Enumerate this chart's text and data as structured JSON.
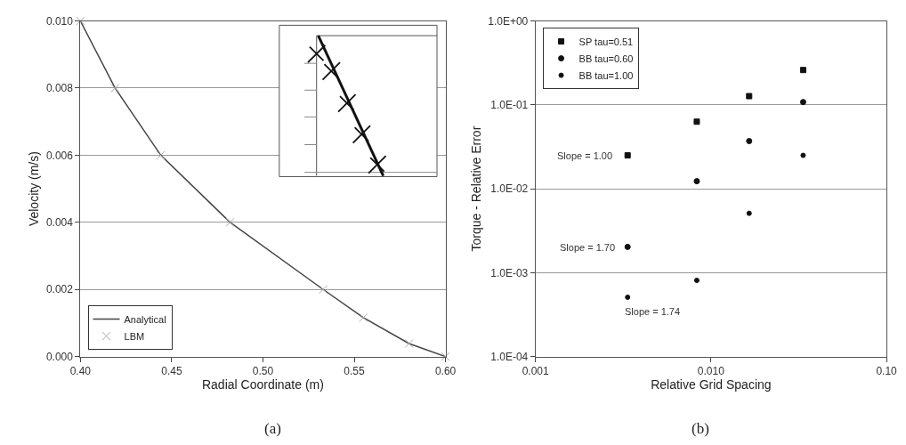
{
  "chart_data": [
    {
      "type": "line",
      "xlabel": "Radial Coordinate (m)",
      "ylabel": "Velocity (m/s)",
      "x": [
        0.4,
        0.419,
        0.444,
        0.482,
        0.533,
        0.555,
        0.58,
        0.6
      ],
      "series": [
        {
          "name": "Analytical",
          "color": "#444444",
          "values": [
            0.01,
            0.008,
            0.006,
            0.004,
            0.002,
            0.00116,
            0.00039,
            0.0
          ],
          "line_style": "solid",
          "marker": "none"
        },
        {
          "name": "LBM",
          "type": "scatter",
          "color": "#aaaaaa",
          "values": [
            0.01,
            0.008,
            0.006,
            0.004,
            0.002,
            0.00116,
            0.00039,
            0.0
          ],
          "marker": "cross"
        }
      ],
      "xlim": [
        0.4,
        0.6
      ],
      "xticks": [
        {
          "value": 0.4,
          "label": "0.40"
        },
        {
          "value": 0.45,
          "label": "0.45"
        },
        {
          "value": 0.5,
          "label": "0.50"
        },
        {
          "value": 0.55,
          "label": "0.55"
        },
        {
          "value": 0.6,
          "label": "0.60"
        }
      ],
      "ylim": [
        0.0,
        0.01
      ],
      "yticks": [
        {
          "value": 0.0,
          "label": "0.000"
        },
        {
          "value": 0.002,
          "label": "0.002"
        },
        {
          "value": 0.004,
          "label": "0.004"
        },
        {
          "value": 0.006,
          "label": "0.006"
        },
        {
          "value": 0.008,
          "label": "0.008"
        },
        {
          "value": 0.01,
          "label": "0.010"
        }
      ],
      "grid": "y",
      "legend": "bottom left",
      "annotations": [
        "(a)"
      ]
    },
    {
      "type": "scatter",
      "xlabel": "Relative Grid Spacing",
      "ylabel": "Torque - Relative Error",
      "x": [
        0.00335,
        0.0083,
        0.0165,
        0.0335
      ],
      "series": [
        {
          "name": "SP tau=0.51",
          "color": "#111111",
          "values": [
            0.025,
            0.063,
            0.127,
            0.26
          ],
          "marker": "square"
        },
        {
          "name": "BB tau=0.60",
          "color": "#111111",
          "values": [
            0.00203,
            0.0123,
            0.037,
            0.108
          ],
          "marker": "circle"
        },
        {
          "name": "BB tau=1.00",
          "color": "#111111",
          "values": [
            0.00051,
            0.00081,
            0.0051,
            0.025
          ],
          "marker": "circle"
        }
      ],
      "log": "xy",
      "xlim": [
        0.001,
        0.1
      ],
      "xticks": [
        {
          "value": 0.001,
          "label": "0.001"
        },
        {
          "value": 0.01,
          "label": "0.010"
        },
        {
          "value": 0.1,
          "label": "0.10"
        }
      ],
      "ylim": [
        0.0001,
        1
      ],
      "yticks": [
        {
          "value": 0.0001,
          "label": "1.0E-04"
        },
        {
          "value": 0.001,
          "label": "1.0E-03"
        },
        {
          "value": 0.01,
          "label": "1.0E-02"
        },
        {
          "value": 0.1,
          "label": "1.0E-01"
        },
        {
          "value": 1,
          "label": "1.0E+00"
        }
      ],
      "grid": "y",
      "legend": "top left",
      "annotations": [
        "Slope = 1.00",
        "Slope = 1.70",
        "Slope = 1.74",
        "(b)"
      ]
    }
  ]
}
